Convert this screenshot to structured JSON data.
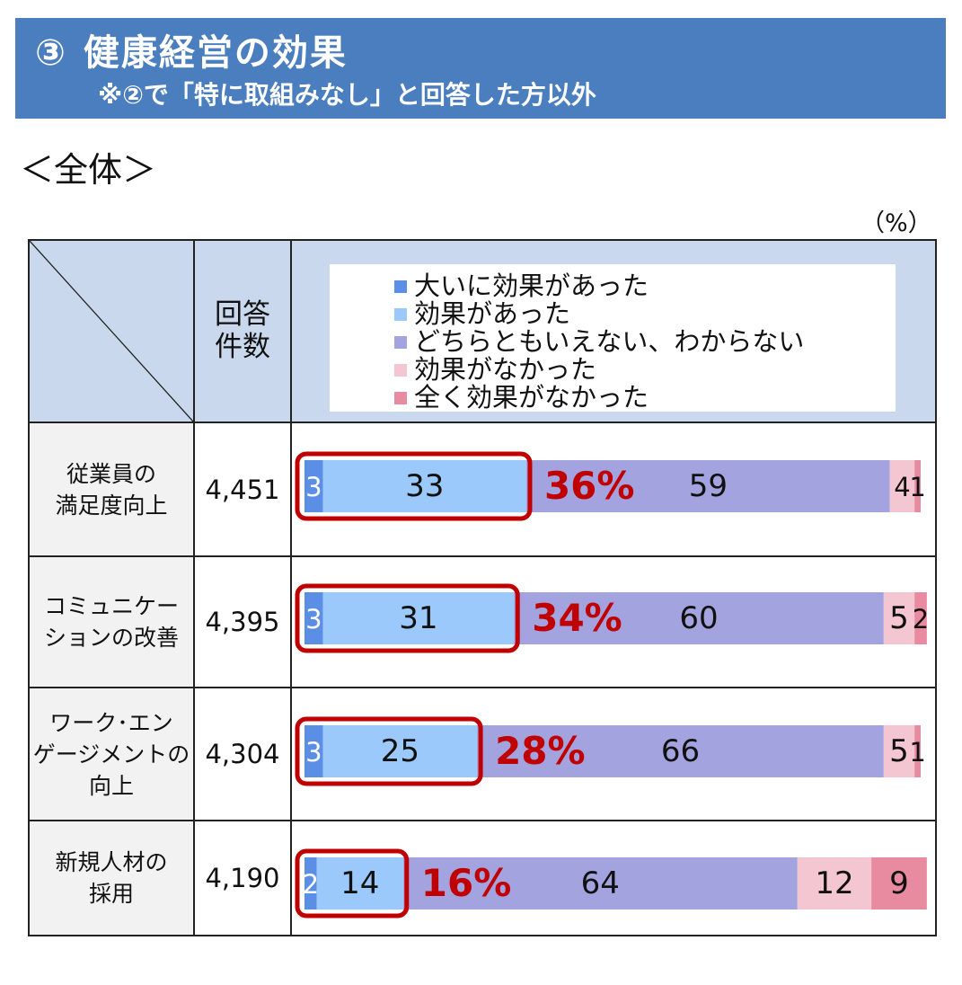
{
  "header": {
    "number": "③",
    "title": "健康経営の効果",
    "subtitle": "※②で「特に取組みなし」と回答した方以外"
  },
  "section_label": "＜全体＞",
  "unit_label": "（%）",
  "table_header": {
    "count_label_line1": "回答",
    "count_label_line2": "件数"
  },
  "colors": {
    "banner": "#4a7ebf",
    "header_cell": "#c9d8ec",
    "highlight": "#c00000",
    "series": [
      "#5b8fe6",
      "#9cc9fb",
      "#a3a3e0",
      "#f4c6d2",
      "#e88aa0"
    ]
  },
  "chart_data": {
    "type": "bar",
    "orientation": "horizontal",
    "stacked": true,
    "xlim": [
      0,
      100
    ],
    "categories": [
      [
        "従業員の",
        "満足度向上"
      ],
      [
        "コミュニケー",
        "ションの改善"
      ],
      [
        "ワーク･エン",
        "ゲージメントの",
        "向上"
      ],
      [
        "新規人材の",
        "採用"
      ]
    ],
    "response_counts": [
      "4,451",
      "4,395",
      "4,304",
      "4,190"
    ],
    "series": [
      {
        "name": "大いに効果があった",
        "values": [
          3,
          3,
          3,
          2
        ]
      },
      {
        "name": "効果があった",
        "values": [
          33,
          31,
          25,
          14
        ]
      },
      {
        "name": "どちらともいえない、わからない",
        "values": [
          59,
          60,
          66,
          64
        ]
      },
      {
        "name": "効果がなかった",
        "values": [
          4,
          5,
          5,
          12
        ]
      },
      {
        "name": "全く効果がなかった",
        "values": [
          1,
          2,
          1,
          9
        ]
      }
    ],
    "highlight_totals": [
      "36%",
      "34%",
      "28%",
      "16%"
    ]
  }
}
